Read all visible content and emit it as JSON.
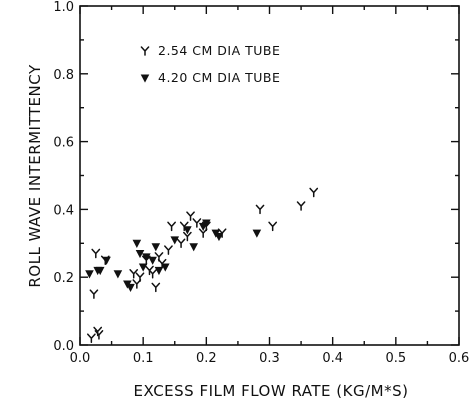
{
  "chart_data": {
    "type": "scatter",
    "title": "",
    "xlabel": "EXCESS FILM FLOW RATE (KG/M*S)",
    "ylabel": "ROLL WAVE INTERMITTENCY",
    "xlim": [
      0.0,
      0.6
    ],
    "ylim": [
      0.0,
      1.0
    ],
    "x_ticks": [
      "0.0",
      "0.1",
      "0.2",
      "0.3",
      "0.4",
      "0.5",
      "0.6"
    ],
    "y_ticks": [
      "0.0",
      "0.2",
      "0.4",
      "0.6",
      "0.8",
      "1.0"
    ],
    "grid": false,
    "legend_position": "top-center",
    "series": [
      {
        "name": "2.54 CM DIA TUBE",
        "marker": "open-y",
        "points": [
          [
            0.018,
            0.02
          ],
          [
            0.022,
            0.15
          ],
          [
            0.025,
            0.27
          ],
          [
            0.028,
            0.04
          ],
          [
            0.03,
            0.03
          ],
          [
            0.04,
            0.25
          ],
          [
            0.085,
            0.21
          ],
          [
            0.09,
            0.18
          ],
          [
            0.095,
            0.2
          ],
          [
            0.105,
            0.25
          ],
          [
            0.11,
            0.22
          ],
          [
            0.115,
            0.21
          ],
          [
            0.12,
            0.17
          ],
          [
            0.125,
            0.26
          ],
          [
            0.13,
            0.24
          ],
          [
            0.14,
            0.28
          ],
          [
            0.145,
            0.35
          ],
          [
            0.16,
            0.3
          ],
          [
            0.165,
            0.35
          ],
          [
            0.17,
            0.32
          ],
          [
            0.175,
            0.38
          ],
          [
            0.185,
            0.36
          ],
          [
            0.195,
            0.33
          ],
          [
            0.2,
            0.35
          ],
          [
            0.225,
            0.33
          ],
          [
            0.285,
            0.4
          ],
          [
            0.305,
            0.35
          ],
          [
            0.35,
            0.41
          ],
          [
            0.37,
            0.45
          ]
        ]
      },
      {
        "name": "4.20 CM DIA TUBE",
        "marker": "filled-triangle",
        "points": [
          [
            0.015,
            0.21
          ],
          [
            0.028,
            0.22
          ],
          [
            0.032,
            0.22
          ],
          [
            0.042,
            0.25
          ],
          [
            0.06,
            0.21
          ],
          [
            0.075,
            0.18
          ],
          [
            0.08,
            0.17
          ],
          [
            0.09,
            0.3
          ],
          [
            0.095,
            0.27
          ],
          [
            0.1,
            0.23
          ],
          [
            0.105,
            0.26
          ],
          [
            0.115,
            0.25
          ],
          [
            0.12,
            0.29
          ],
          [
            0.125,
            0.22
          ],
          [
            0.135,
            0.23
          ],
          [
            0.15,
            0.31
          ],
          [
            0.17,
            0.34
          ],
          [
            0.18,
            0.29
          ],
          [
            0.195,
            0.35
          ],
          [
            0.2,
            0.36
          ],
          [
            0.215,
            0.33
          ],
          [
            0.22,
            0.32
          ],
          [
            0.28,
            0.33
          ]
        ]
      }
    ]
  }
}
